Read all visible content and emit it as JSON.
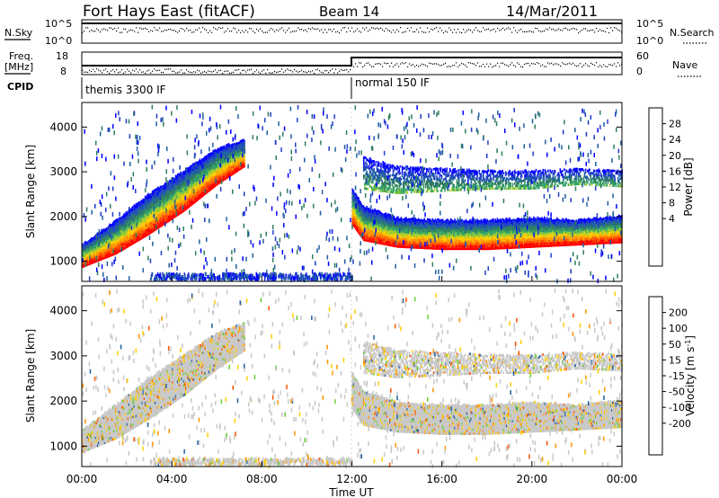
{
  "header": {
    "station": "Fort Hays East (fitACF)",
    "beam": "Beam 14",
    "date": "14/Mar/2011"
  },
  "params": {
    "nsky_label": "N.Sky",
    "nsky_ticks": [
      "10^5",
      "10^0"
    ],
    "nsearch_label": "N.Search",
    "freq_label": "Freq.",
    "freq_unit": "[MHz]",
    "freq_ticks": [
      "18",
      "8"
    ],
    "nave_label": "Nave",
    "nave_ticks": [
      "60",
      "0"
    ],
    "cpid_label": "CPID"
  },
  "cpid": [
    {
      "label": "themis 3300 IF",
      "start": 0,
      "end": 12
    },
    {
      "label": "normal 150 IF",
      "start": 12,
      "end": 24
    }
  ],
  "axes": {
    "ylabel": "Slant Range [km]",
    "yticks": [
      1000,
      2000,
      3000,
      4000
    ],
    "ylim": [
      550,
      4550
    ],
    "xlabel": "Time UT",
    "xticks": [
      "00:00",
      "04:00",
      "08:00",
      "12:00",
      "16:00",
      "20:00",
      "00:00"
    ],
    "xlim": [
      0,
      24
    ]
  },
  "colorbars": {
    "power": {
      "label": "Power [dB]",
      "ticks": [
        "28",
        "24",
        "20",
        "16",
        "12",
        "8",
        "4"
      ],
      "colors": [
        "#ff0000",
        "#ff5000",
        "#ff9600",
        "#ffcd00",
        "#99cc33",
        "#33a366",
        "#2e7d5e",
        "#1f5fa0",
        "#1e3cc8",
        "#0000ff"
      ]
    },
    "velocity": {
      "label": "Velocity [m s",
      "label_sup": "-1",
      "label_end": "]",
      "ticks": [
        "200",
        "100",
        "50",
        "15",
        "-15",
        "-50",
        "-100",
        "-200"
      ],
      "colors": [
        "#1e3cc8",
        "#1f5fa0",
        "#33a366",
        "#66cc33",
        "#c8c8c8",
        "#c8c8c8",
        "#ffcd00",
        "#ff9600",
        "#ff5000",
        "#ff0000"
      ]
    }
  },
  "chart_data": [
    {
      "type": "heatmap",
      "title": "Power",
      "xlabel": "Time UT",
      "ylabel": "Slant Range [km]",
      "xlim": [
        0,
        24
      ],
      "ylim": [
        550,
        4550
      ],
      "colorbar": "Power [dB]",
      "bands": [
        {
          "t": [
            0,
            1.5,
            3,
            4.5,
            6,
            7.2
          ],
          "r_low": [
            850,
            1150,
            1600,
            2100,
            2700,
            3100
          ],
          "r_high": [
            1350,
            1900,
            2500,
            3000,
            3500,
            3700
          ],
          "power": 18
        },
        {
          "t": [
            12,
            12.5,
            14,
            16,
            18,
            20,
            22,
            24
          ],
          "r_low": [
            1800,
            1450,
            1300,
            1250,
            1250,
            1300,
            1350,
            1400
          ],
          "r_high": [
            2600,
            2200,
            1950,
            1900,
            1900,
            1950,
            1900,
            2000
          ],
          "power": 22
        },
        {
          "t": [
            12.5,
            14,
            16,
            18,
            20,
            22,
            24
          ],
          "r_low": [
            2600,
            2500,
            2550,
            2600,
            2600,
            2700,
            2650
          ],
          "r_high": [
            3300,
            3100,
            3050,
            3000,
            3000,
            3050,
            3000
          ],
          "power": 12
        }
      ]
    },
    {
      "type": "heatmap",
      "title": "Velocity",
      "xlabel": "Time UT",
      "ylabel": "Slant Range [km]",
      "xlim": [
        0,
        24
      ],
      "ylim": [
        550,
        4550
      ],
      "colorbar": "Velocity [m s-1]",
      "bands": [
        {
          "t": [
            0,
            1.5,
            3,
            4.5,
            6,
            7.2
          ],
          "r_low": [
            850,
            1150,
            1600,
            2100,
            2700,
            3100
          ],
          "r_high": [
            1350,
            1900,
            2500,
            3000,
            3500,
            3700
          ],
          "velocity": 0
        },
        {
          "t": [
            12,
            12.5,
            14,
            16,
            18,
            20,
            22,
            24
          ],
          "r_low": [
            1800,
            1450,
            1300,
            1250,
            1250,
            1300,
            1350,
            1400
          ],
          "r_high": [
            2600,
            2200,
            1950,
            1900,
            1900,
            1950,
            1900,
            2000
          ],
          "velocity": 0
        },
        {
          "t": [
            12.5,
            14,
            16,
            18,
            20,
            22,
            24
          ],
          "r_low": [
            2600,
            2500,
            2550,
            2600,
            2600,
            2700,
            2650
          ],
          "r_high": [
            3300,
            3100,
            3050,
            3000,
            3000,
            3050,
            3000
          ],
          "velocity": 0
        }
      ]
    }
  ]
}
